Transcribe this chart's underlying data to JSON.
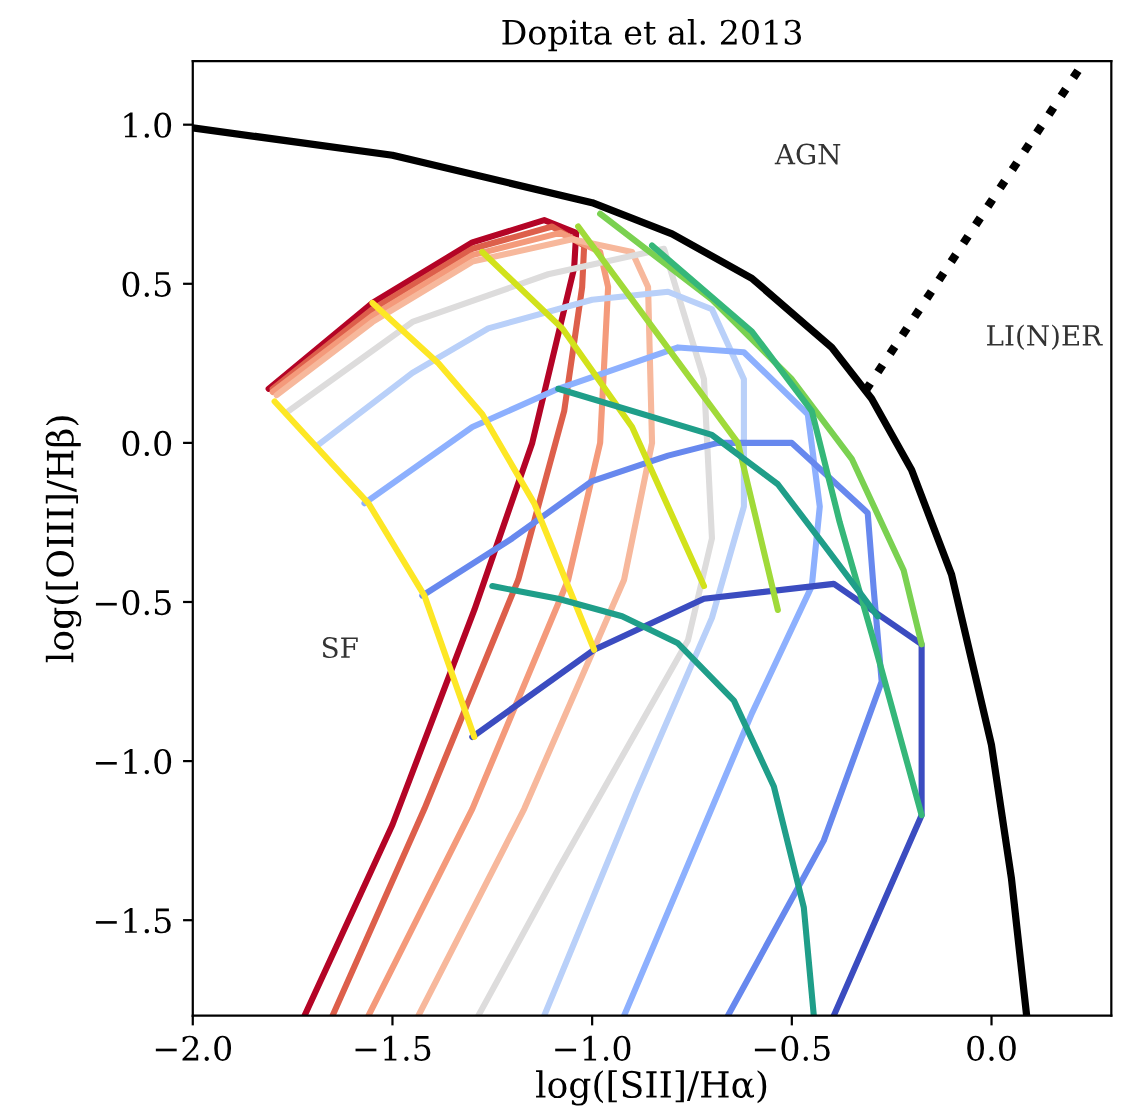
{
  "chart_data": {
    "type": "line",
    "title": "Dopita et al. 2013",
    "xlabel": "log([SII]/Hα)",
    "ylabel": "log([OIII]/Hβ)",
    "xlim": [
      -2.0,
      0.3
    ],
    "ylim": [
      -1.8,
      1.2
    ],
    "xticks": [
      {
        "value": -2.0,
        "label": "−2.0"
      },
      {
        "value": -1.5,
        "label": "−1.5"
      },
      {
        "value": -1.0,
        "label": "−1.0"
      },
      {
        "value": -0.5,
        "label": "−0.5"
      },
      {
        "value": 0.0,
        "label": "0.0"
      }
    ],
    "yticks": [
      {
        "value": -1.5,
        "label": "−1.5"
      },
      {
        "value": -1.0,
        "label": "−1.0"
      },
      {
        "value": -0.5,
        "label": "−0.5"
      },
      {
        "value": 0.0,
        "label": "0.0"
      },
      {
        "value": 0.5,
        "label": "0.5"
      },
      {
        "value": 1.0,
        "label": "1.0"
      }
    ],
    "grid": false,
    "legend": false,
    "marker": "none",
    "annotations": [
      "AGN",
      "LI(N)ER",
      "SF"
    ],
    "series": [
      {
        "color": "#b40426",
        "x": [
          -1.81,
          -1.55,
          -1.3,
          -1.12,
          -1.04,
          -1.045,
          -1.15,
          -1.295,
          -1.5,
          -1.72
        ],
        "values": [
          0.17,
          0.44,
          0.63,
          0.7,
          0.66,
          0.55,
          0.0,
          -0.525,
          -1.2,
          -1.8
        ]
      },
      {
        "color": "#dd5f4b",
        "x": [
          -1.8,
          -1.55,
          -1.3,
          -1.1,
          -1.02,
          -1.025,
          -1.07,
          -1.185,
          -1.42,
          -1.65
        ],
        "values": [
          0.17,
          0.42,
          0.61,
          0.68,
          0.62,
          0.49,
          0.1,
          -0.43,
          -1.15,
          -1.8
        ]
      },
      {
        "color": "#f49a7b",
        "x": [
          -1.8,
          -1.55,
          -1.3,
          -1.08,
          -0.98,
          -0.96,
          -0.98,
          -1.06,
          -1.3,
          -1.56
        ],
        "values": [
          0.16,
          0.4,
          0.59,
          0.66,
          0.6,
          0.49,
          0.0,
          -0.43,
          -1.15,
          -1.8
        ]
      },
      {
        "color": "#f7b89c",
        "x": [
          -1.79,
          -1.55,
          -1.3,
          -1.05,
          -0.9,
          -0.86,
          -0.85,
          -0.92,
          -1.17,
          -1.435
        ],
        "values": [
          0.15,
          0.38,
          0.57,
          0.64,
          0.6,
          0.49,
          0.0,
          -0.43,
          -1.15,
          -1.8
        ]
      },
      {
        "color": "#dddcdc",
        "x": [
          -1.76,
          -1.45,
          -1.11,
          -0.82,
          -0.72,
          -0.7,
          -0.76,
          -1.085,
          -1.285
        ],
        "values": [
          0.1,
          0.38,
          0.53,
          0.61,
          0.2,
          -0.3,
          -0.62,
          -1.34,
          -1.8
        ]
      },
      {
        "color": "#b9d0f9",
        "x": [
          -1.69,
          -1.45,
          -1.26,
          -1.0,
          -0.81,
          -0.7,
          -0.62,
          -0.62,
          -0.7,
          -0.89,
          -1.12
        ],
        "values": [
          -0.01,
          0.22,
          0.36,
          0.45,
          0.475,
          0.42,
          0.2,
          -0.2,
          -0.55,
          -1.1,
          -1.8
        ]
      },
      {
        "color": "#8db0fe",
        "x": [
          -1.57,
          -1.3,
          -1.085,
          -0.785,
          -0.62,
          -0.46,
          -0.43,
          -0.45,
          -0.6,
          -0.92
        ],
        "values": [
          -0.19,
          0.05,
          0.17,
          0.3,
          0.285,
          0.09,
          -0.2,
          -0.45,
          -0.85,
          -1.8
        ]
      },
      {
        "color": "#6788ee",
        "x": [
          -1.425,
          -1.2,
          -1.0,
          -0.81,
          -0.685,
          -0.5,
          -0.31,
          -0.295,
          -0.275,
          -0.42,
          -0.66
        ],
        "values": [
          -0.48,
          -0.3,
          -0.12,
          -0.04,
          0.0,
          0.0,
          -0.22,
          -0.46,
          -0.75,
          -1.25,
          -1.8
        ]
      },
      {
        "color": "#3b4cc0",
        "x": [
          -1.3,
          -0.995,
          -0.72,
          -0.395,
          -0.175,
          -0.175,
          -0.395
        ],
        "values": [
          -0.924,
          -0.65,
          -0.49,
          -0.443,
          -0.633,
          -1.17,
          -1.8
        ]
      },
      {
        "color": "#fde725",
        "x": [
          -1.795,
          -1.56,
          -1.42,
          -1.295
        ],
        "values": [
          0.13,
          -0.19,
          -0.48,
          -0.924
        ]
      },
      {
        "color": "#fde725",
        "x": [
          -1.55,
          -1.385,
          -1.275,
          -1.145,
          -0.995
        ],
        "values": [
          0.44,
          0.25,
          0.09,
          -0.19,
          -0.65
        ]
      },
      {
        "color": "#d2e21b",
        "x": [
          -1.275,
          -1.075,
          -0.9,
          -0.72
        ],
        "values": [
          0.6,
          0.36,
          0.05,
          -0.45
        ]
      },
      {
        "color": "#a0da39",
        "x": [
          -1.035,
          -0.635,
          -0.535
        ],
        "values": [
          0.68,
          0.0,
          -0.525
        ]
      },
      {
        "color": "#7ad151",
        "x": [
          -0.98,
          -0.7,
          -0.5,
          -0.35,
          -0.22,
          -0.175
        ],
        "values": [
          0.72,
          0.45,
          0.2,
          -0.05,
          -0.4,
          -0.633
        ]
      },
      {
        "color": "#35b779",
        "x": [
          -0.85,
          -0.6,
          -0.45,
          -0.38,
          -0.3,
          -0.175
        ],
        "values": [
          0.62,
          0.35,
          0.1,
          -0.25,
          -0.6,
          -1.17
        ]
      },
      {
        "color": "#1f9e89",
        "x": [
          -1.085,
          -0.7,
          -0.535,
          -0.42,
          -0.285
        ],
        "values": [
          0.17,
          0.025,
          -0.13,
          -0.32,
          -0.545
        ]
      },
      {
        "color": "#1f9e89",
        "x": [
          -1.25,
          -1.085,
          -0.925,
          -0.785,
          -0.645,
          -0.545,
          -0.47,
          -0.445
        ],
        "values": [
          -0.45,
          -0.49,
          -0.545,
          -0.63,
          -0.81,
          -1.08,
          -1.46,
          -1.8
        ]
      },
      {
        "color": "#000000",
        "line_style": "solid",
        "x": [
          -2.0,
          -1.5,
          -1.0,
          -0.8,
          -0.6,
          -0.4,
          -0.3,
          -0.2,
          -0.1,
          0.0,
          0.05,
          0.088
        ],
        "values": [
          0.99,
          0.904,
          0.755,
          0.657,
          0.517,
          0.3,
          0.139,
          -0.085,
          -0.414,
          -0.95,
          -1.37,
          -1.8
        ]
      },
      {
        "color": "#000000",
        "line_style": "dotted",
        "x": [
          -0.315,
          0.23
        ],
        "values": [
          0.165,
          1.195
        ]
      }
    ]
  }
}
